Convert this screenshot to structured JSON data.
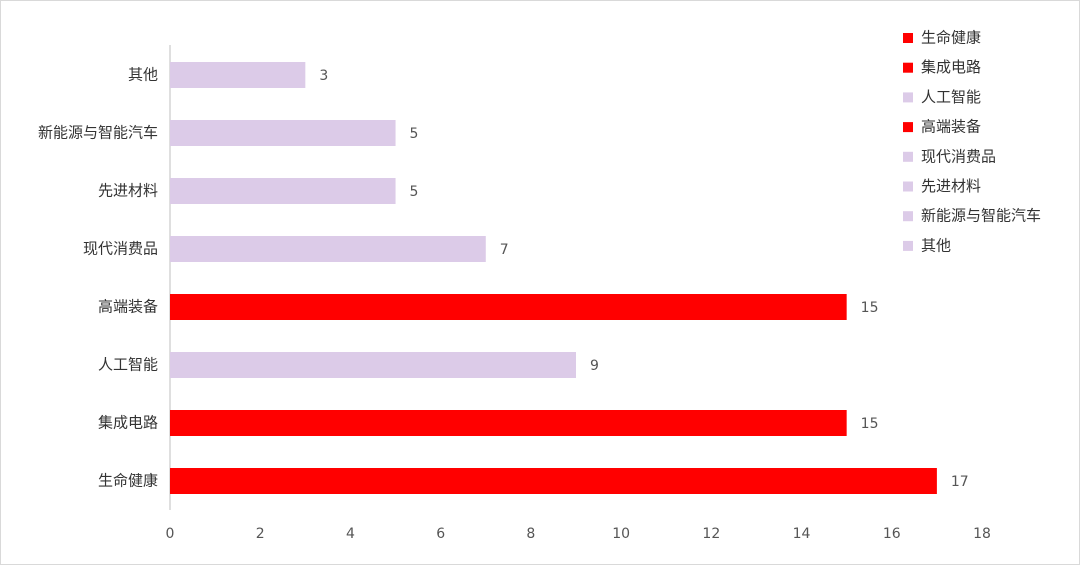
{
  "chart_data": {
    "type": "bar",
    "orientation": "horizontal",
    "categories": [
      "生命健康",
      "集成电路",
      "人工智能",
      "高端装备",
      "现代消费品",
      "先进材料",
      "新能源与智能汽车",
      "其他"
    ],
    "values": [
      17,
      15,
      9,
      15,
      7,
      5,
      5,
      3
    ],
    "colors": [
      "#ff0000",
      "#ff0000",
      "#dccbe8",
      "#ff0000",
      "#dccbe8",
      "#dccbe8",
      "#dccbe8",
      "#dccbe8"
    ],
    "xlim": [
      0,
      18
    ],
    "xticks": [
      0,
      2,
      4,
      6,
      8,
      10,
      12,
      14,
      16,
      18
    ],
    "grid": false,
    "legend": "right"
  }
}
